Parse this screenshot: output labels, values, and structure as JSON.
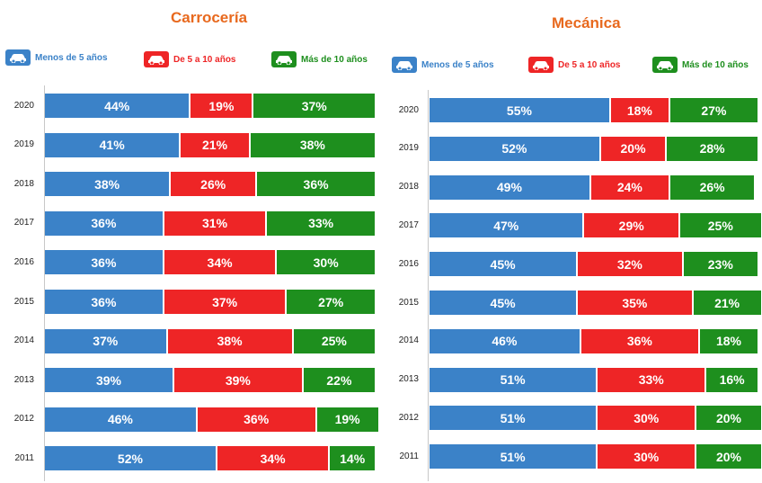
{
  "colors": {
    "menos": "#3b82c8",
    "de5a10": "#ee2526",
    "mas10": "#1e8f1e",
    "title": "#e8691e",
    "axis": "#c8c8c8"
  },
  "legend_icon": "car-icon",
  "chart_data": [
    {
      "type": "bar",
      "stacked": true,
      "orientation": "horizontal",
      "unit": "%",
      "title": "Carrocería",
      "categories": [
        "2020",
        "2019",
        "2018",
        "2017",
        "2016",
        "2015",
        "2014",
        "2013",
        "2012",
        "2011"
      ],
      "series": [
        {
          "name": "Menos de 5 años",
          "color": "#3b82c8",
          "values": [
            44,
            41,
            38,
            36,
            36,
            36,
            37,
            39,
            46,
            52
          ]
        },
        {
          "name": "De 5 a 10 años",
          "color": "#ee2526",
          "values": [
            19,
            21,
            26,
            31,
            34,
            37,
            38,
            39,
            36,
            34
          ]
        },
        {
          "name": "Más de 10 años",
          "color": "#1e8f1e",
          "values": [
            37,
            38,
            36,
            33,
            30,
            27,
            25,
            22,
            19,
            14
          ]
        }
      ],
      "xlim": [
        0,
        100
      ],
      "legend_position": "top",
      "grid": false
    },
    {
      "type": "bar",
      "stacked": true,
      "orientation": "horizontal",
      "unit": "%",
      "title": "Mecánica",
      "categories": [
        "2020",
        "2019",
        "2018",
        "2017",
        "2016",
        "2015",
        "2014",
        "2013",
        "2012",
        "2011"
      ],
      "series": [
        {
          "name": "Menos de 5 años",
          "color": "#3b82c8",
          "values": [
            55,
            52,
            49,
            47,
            45,
            45,
            46,
            51,
            51,
            51
          ]
        },
        {
          "name": "De 5 a 10 años",
          "color": "#ee2526",
          "values": [
            18,
            20,
            24,
            29,
            32,
            35,
            36,
            33,
            30,
            30
          ]
        },
        {
          "name": "Más de 10 años",
          "color": "#1e8f1e",
          "values": [
            27,
            28,
            26,
            25,
            23,
            21,
            18,
            16,
            20,
            20
          ]
        }
      ],
      "xlim": [
        0,
        100
      ],
      "legend_position": "top",
      "grid": false
    }
  ]
}
